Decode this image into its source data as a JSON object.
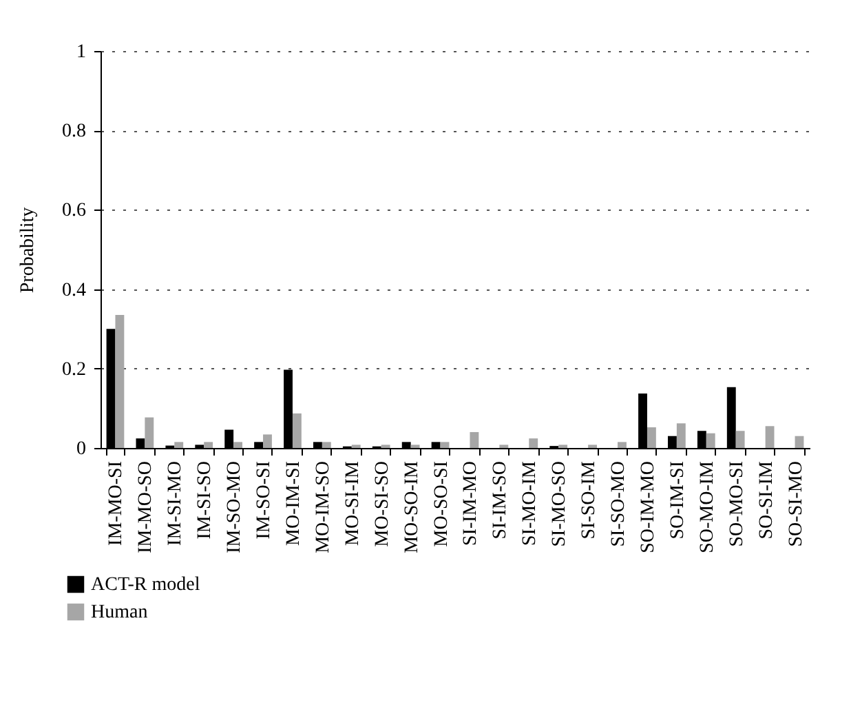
{
  "chart_data": {
    "type": "bar",
    "ylabel": "Probability",
    "categories": [
      "IM-MO-SI",
      "IM-MO-SO",
      "IM-SI-MO",
      "IM-SI-SO",
      "IM-SO-MO",
      "IM-SO-SI",
      "MO-IM-SI",
      "MO-IM-SO",
      "MO-SI-IM",
      "MO-SI-SO",
      "MO-SO-IM",
      "MO-SO-SI",
      "SI-IM-MO",
      "SI-IM-SO",
      "SI-MO-IM",
      "SI-MO-SO",
      "SI-SO-IM",
      "SI-SO-MO",
      "SO-IM-MO",
      "SO-IM-SI",
      "SO-MO-IM",
      "SO-MO-SI",
      "SO-SI-IM",
      "SO-SI-MO"
    ],
    "series": [
      {
        "name": "ACT-R model",
        "color": "#000000",
        "values": [
          0.3,
          0.024,
          0.006,
          0.008,
          0.046,
          0.015,
          0.197,
          0.015,
          0.004,
          0.004,
          0.015,
          0.015,
          0,
          0,
          0,
          0.005,
          0,
          0,
          0.137,
          0.03,
          0.043,
          0.153,
          0,
          0
        ]
      },
      {
        "name": "Human",
        "color": "#a6a6a6",
        "values": [
          0.335,
          0.077,
          0.015,
          0.015,
          0.015,
          0.034,
          0.087,
          0.015,
          0.008,
          0.008,
          0.008,
          0.015,
          0.04,
          0.008,
          0.024,
          0.008,
          0.008,
          0.015,
          0.052,
          0.062,
          0.037,
          0.043,
          0.055,
          0.03
        ]
      }
    ],
    "ylim": [
      0,
      1
    ],
    "yticks": [
      0,
      0.2,
      0.4,
      0.6,
      0.8,
      1
    ],
    "grid": "y",
    "legend": "bottom left"
  }
}
